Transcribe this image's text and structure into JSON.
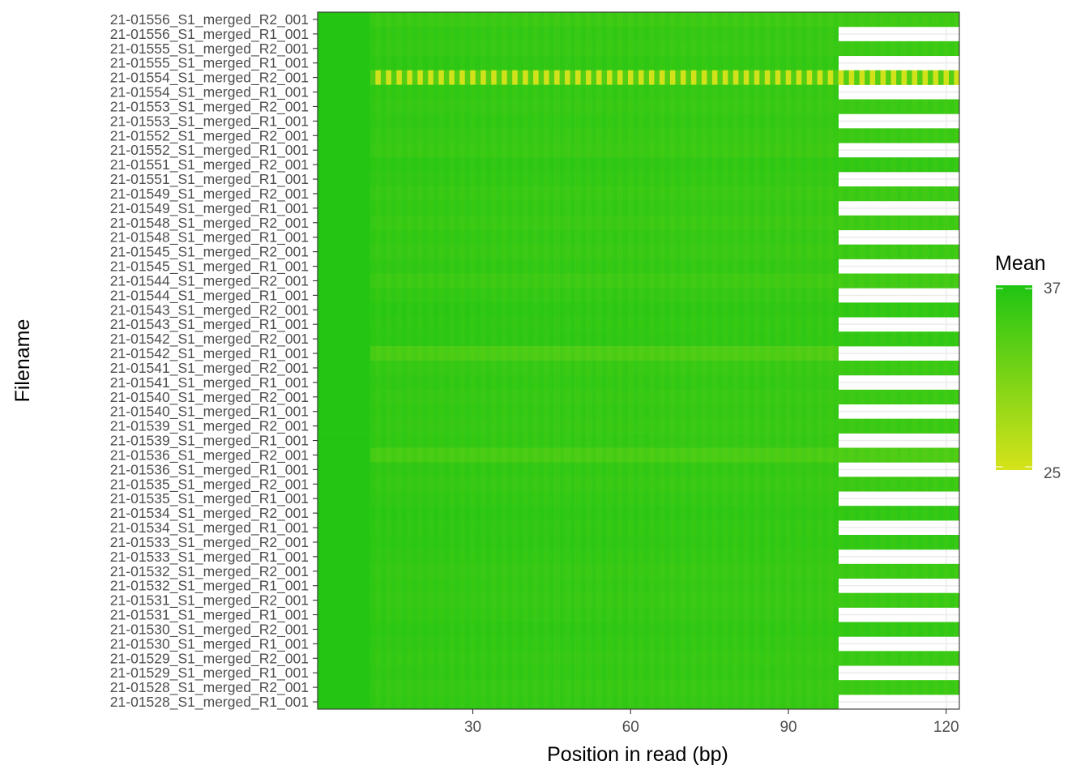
{
  "chart_data": {
    "type": "heatmap",
    "title": "",
    "xlabel": "Position in read (bp)",
    "ylabel": "Filename",
    "xlim": [
      1,
      122
    ],
    "x_ticks": [
      30,
      60,
      90,
      120
    ],
    "grid": true,
    "legend": {
      "title": "Mean",
      "position": "right",
      "min": 25,
      "max": 37,
      "low_color": "#d6e31a",
      "high_color": "#1fc513"
    },
    "fill_low_color": "#d6e31a",
    "fill_high_color": "#1fc513",
    "long_read_length": 122,
    "short_read_length": 99,
    "rows": [
      {
        "name": "21-01556_S1_merged_R2_001",
        "long": true,
        "mean": 35.5
      },
      {
        "name": "21-01556_S1_merged_R1_001",
        "long": false,
        "mean": 36.0
      },
      {
        "name": "21-01555_S1_merged_R2_001",
        "long": true,
        "mean": 35.8
      },
      {
        "name": "21-01555_S1_merged_R1_001",
        "long": false,
        "mean": 36.2
      },
      {
        "name": "21-01554_S1_merged_R2_001",
        "long": true,
        "mean": 25.5
      },
      {
        "name": "21-01554_S1_merged_R1_001",
        "long": false,
        "mean": 36.0
      },
      {
        "name": "21-01553_S1_merged_R2_001",
        "long": true,
        "mean": 35.8
      },
      {
        "name": "21-01553_S1_merged_R1_001",
        "long": false,
        "mean": 36.1
      },
      {
        "name": "21-01552_S1_merged_R2_001",
        "long": true,
        "mean": 35.8
      },
      {
        "name": "21-01552_S1_merged_R1_001",
        "long": false,
        "mean": 35.6
      },
      {
        "name": "21-01551_S1_merged_R2_001",
        "long": true,
        "mean": 36.3
      },
      {
        "name": "21-01551_S1_merged_R1_001",
        "long": false,
        "mean": 36.1
      },
      {
        "name": "21-01549_S1_merged_R2_001",
        "long": true,
        "mean": 35.7
      },
      {
        "name": "21-01549_S1_merged_R1_001",
        "long": false,
        "mean": 36.0
      },
      {
        "name": "21-01548_S1_merged_R2_001",
        "long": true,
        "mean": 35.6
      },
      {
        "name": "21-01548_S1_merged_R1_001",
        "long": false,
        "mean": 36.0
      },
      {
        "name": "21-01545_S1_merged_R2_001",
        "long": true,
        "mean": 35.7
      },
      {
        "name": "21-01545_S1_merged_R1_001",
        "long": false,
        "mean": 36.1
      },
      {
        "name": "21-01544_S1_merged_R2_001",
        "long": true,
        "mean": 35.4
      },
      {
        "name": "21-01544_S1_merged_R1_001",
        "long": false,
        "mean": 36.0
      },
      {
        "name": "21-01543_S1_merged_R2_001",
        "long": true,
        "mean": 36.4
      },
      {
        "name": "21-01543_S1_merged_R1_001",
        "long": false,
        "mean": 36.2
      },
      {
        "name": "21-01542_S1_merged_R2_001",
        "long": true,
        "mean": 36.3
      },
      {
        "name": "21-01542_S1_merged_R1_001",
        "long": false,
        "mean": 34.4
      },
      {
        "name": "21-01541_S1_merged_R2_001",
        "long": true,
        "mean": 35.8
      },
      {
        "name": "21-01541_S1_merged_R1_001",
        "long": false,
        "mean": 36.1
      },
      {
        "name": "21-01540_S1_merged_R2_001",
        "long": true,
        "mean": 35.8
      },
      {
        "name": "21-01540_S1_merged_R1_001",
        "long": false,
        "mean": 36.0
      },
      {
        "name": "21-01539_S1_merged_R2_001",
        "long": true,
        "mean": 35.8
      },
      {
        "name": "21-01539_S1_merged_R1_001",
        "long": false,
        "mean": 36.0
      },
      {
        "name": "21-01536_S1_merged_R2_001",
        "long": true,
        "mean": 34.6
      },
      {
        "name": "21-01536_S1_merged_R1_001",
        "long": false,
        "mean": 36.1
      },
      {
        "name": "21-01535_S1_merged_R2_001",
        "long": true,
        "mean": 35.8
      },
      {
        "name": "21-01535_S1_merged_R1_001",
        "long": false,
        "mean": 36.1
      },
      {
        "name": "21-01534_S1_merged_R2_001",
        "long": true,
        "mean": 36.4
      },
      {
        "name": "21-01534_S1_merged_R1_001",
        "long": false,
        "mean": 36.2
      },
      {
        "name": "21-01533_S1_merged_R2_001",
        "long": true,
        "mean": 36.3
      },
      {
        "name": "21-01533_S1_merged_R1_001",
        "long": false,
        "mean": 36.1
      },
      {
        "name": "21-01532_S1_merged_R2_001",
        "long": true,
        "mean": 35.8
      },
      {
        "name": "21-01532_S1_merged_R1_001",
        "long": false,
        "mean": 36.0
      },
      {
        "name": "21-01531_S1_merged_R2_001",
        "long": true,
        "mean": 35.8
      },
      {
        "name": "21-01531_S1_merged_R1_001",
        "long": false,
        "mean": 36.0
      },
      {
        "name": "21-01530_S1_merged_R2_001",
        "long": true,
        "mean": 36.3
      },
      {
        "name": "21-01530_S1_merged_R1_001",
        "long": false,
        "mean": 36.1
      },
      {
        "name": "21-01529_S1_merged_R2_001",
        "long": true,
        "mean": 35.9
      },
      {
        "name": "21-01529_S1_merged_R1_001",
        "long": false,
        "mean": 36.1
      },
      {
        "name": "21-01528_S1_merged_R2_001",
        "long": true,
        "mean": 35.8
      },
      {
        "name": "21-01528_S1_merged_R1_001",
        "long": false,
        "mean": 36.0
      }
    ]
  }
}
